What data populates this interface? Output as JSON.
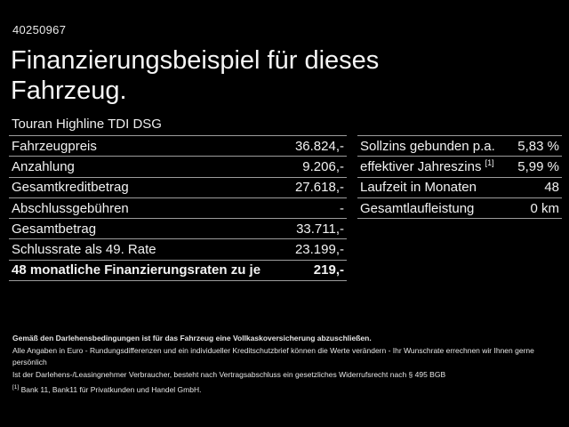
{
  "header": {
    "vehicle_id": "40250967",
    "title_line1": "Finanzierungsbeispiel für dieses",
    "title_line2": "Fahrzeug.",
    "subtitle": "Touran Highline TDI DSG"
  },
  "left_table": {
    "rows": [
      {
        "label": "Fahrzeugpreis",
        "value": "36.824,-"
      },
      {
        "label": "Anzahlung",
        "value": "9.206,-"
      },
      {
        "label": "Gesamtkreditbetrag",
        "value": "27.618,-"
      },
      {
        "label": "Abschlussgebühren",
        "value": "-"
      },
      {
        "label": "Gesamtbetrag",
        "value": "33.711,-"
      },
      {
        "label": "Schlussrate als 49. Rate",
        "value": "23.199,-"
      },
      {
        "label": "48 monatliche Finanzierungsraten zu je",
        "value": "219,-"
      }
    ]
  },
  "right_table": {
    "rows": [
      {
        "label": "Sollzins gebunden p.a.",
        "value": "5,83 %"
      },
      {
        "label": "effektiver Jahreszins",
        "label_sup": "[1]",
        "value": "5,99 %"
      },
      {
        "label": "Laufzeit in Monaten",
        "value": "48"
      },
      {
        "label": "Gesamtlaufleistung",
        "value": "0 km"
      }
    ]
  },
  "footer": {
    "line1": "Gemäß den Darlehensbedingungen ist für das Fahrzeug eine Vollkaskoversicherung abzuschließen.",
    "line2": "Alle Angaben in Euro - Rundungsdifferenzen und ein individueller Kreditschutzbrief können die Werte verändern - Ihr Wunschrate errechnen wir Ihnen gerne persönlich",
    "line3": "Ist der Darlehens-/Leasingnehmer Verbraucher, besteht nach Vertragsabschluss ein gesetzliches Widerrufsrecht nach § 495 BGB",
    "footnote_marker": "[1]",
    "footnote_text": "Bank 11, Bank11 für Privatkunden und Handel GmbH."
  },
  "colors": {
    "background": "#000000",
    "text": "#f2f2f2",
    "separator": "#9c9c9c"
  }
}
